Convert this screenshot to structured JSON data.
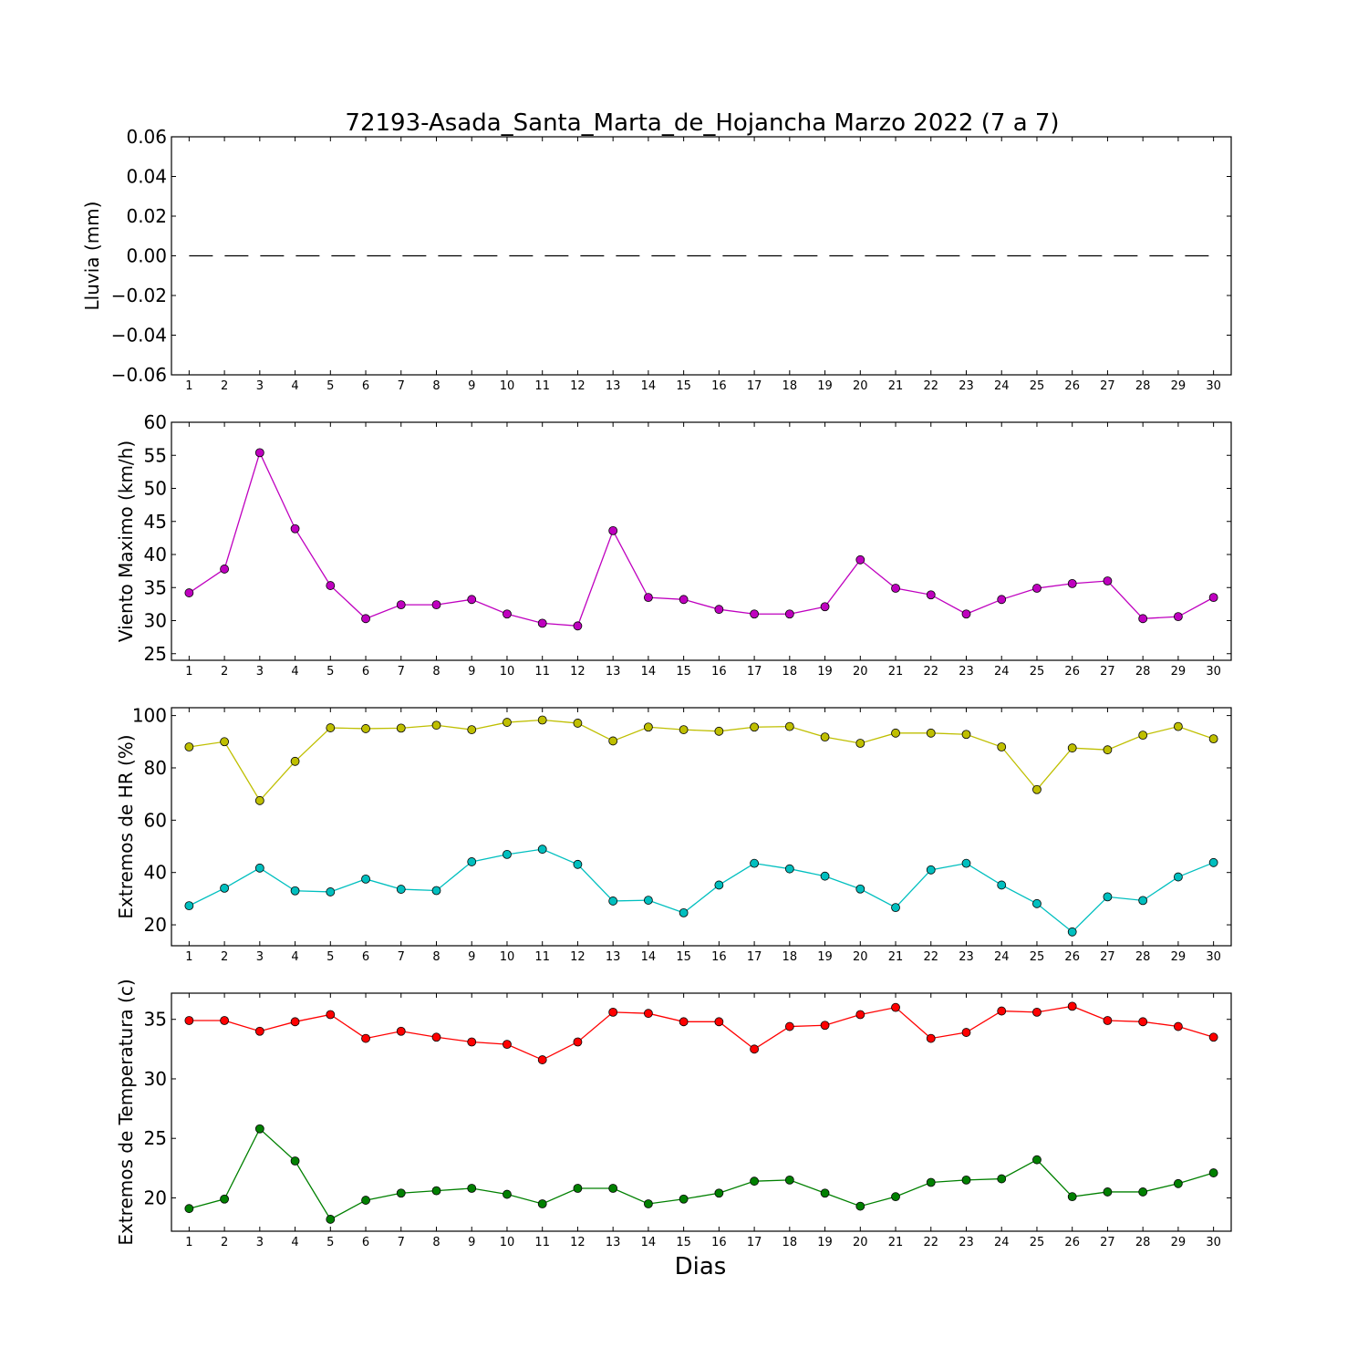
{
  "chart_data": [
    {
      "type": "line",
      "title": "72193-Asada_Santa_Marta_de_Hojancha Marzo 2022  (7 a 7)",
      "ylabel": "Lluvia (mm)",
      "xlabel": "",
      "x": [
        1,
        2,
        3,
        4,
        5,
        6,
        7,
        8,
        9,
        10,
        11,
        12,
        13,
        14,
        15,
        16,
        17,
        18,
        19,
        20,
        21,
        22,
        23,
        24,
        25,
        26,
        27,
        28,
        29,
        30
      ],
      "xlim": [
        0.5,
        30.5
      ],
      "ylim": [
        -0.06,
        0.06
      ],
      "yticks": [
        "0.06",
        "0.04",
        "0.02",
        "0.00",
        "−0.02",
        "−0.04",
        "−0.06"
      ],
      "ytick_values": [
        0.06,
        0.04,
        0.02,
        0.0,
        -0.02,
        -0.04,
        -0.06
      ],
      "series": [
        {
          "color": "#000000",
          "style": "dashed",
          "markers": false,
          "values": [
            0,
            0,
            0,
            0,
            0,
            0,
            0,
            0,
            0,
            0,
            0,
            0,
            0,
            0,
            0,
            0,
            0,
            0,
            0,
            0,
            0,
            0,
            0,
            0,
            0,
            0,
            0,
            0,
            0,
            0
          ]
        }
      ]
    },
    {
      "type": "line",
      "ylabel": "Viento Maximo (km/h)",
      "xlabel": "",
      "x": [
        1,
        2,
        3,
        4,
        5,
        6,
        7,
        8,
        9,
        10,
        11,
        12,
        13,
        14,
        15,
        16,
        17,
        18,
        19,
        20,
        21,
        22,
        23,
        24,
        25,
        26,
        27,
        28,
        29,
        30
      ],
      "xlim": [
        0.5,
        30.5
      ],
      "ylim": [
        24,
        60
      ],
      "yticks": [
        "60",
        "55",
        "50",
        "45",
        "40",
        "35",
        "30",
        "25"
      ],
      "ytick_values": [
        60,
        55,
        50,
        45,
        40,
        35,
        30,
        25
      ],
      "series": [
        {
          "color": "#bf00bf",
          "style": "solid",
          "markers": true,
          "values": [
            34.2,
            37.8,
            55.4,
            43.9,
            35.3,
            30.3,
            32.4,
            32.4,
            33.2,
            31.0,
            29.6,
            29.2,
            43.6,
            33.5,
            33.2,
            31.7,
            31.0,
            31.0,
            32.1,
            39.2,
            34.9,
            33.9,
            31.0,
            33.2,
            34.9,
            35.6,
            36.0,
            30.3,
            30.6,
            33.5
          ]
        }
      ]
    },
    {
      "type": "line",
      "ylabel": "Extremos de HR (%)",
      "xlabel": "",
      "x": [
        1,
        2,
        3,
        4,
        5,
        6,
        7,
        8,
        9,
        10,
        11,
        12,
        13,
        14,
        15,
        16,
        17,
        18,
        19,
        20,
        21,
        22,
        23,
        24,
        25,
        26,
        27,
        28,
        29,
        30
      ],
      "xlim": [
        0.5,
        30.5
      ],
      "ylim": [
        12,
        103
      ],
      "yticks": [
        "100",
        "80",
        "60",
        "40",
        "20"
      ],
      "ytick_values": [
        100,
        80,
        60,
        40,
        20
      ],
      "series": [
        {
          "color": "#bfbf00",
          "style": "solid",
          "markers": true,
          "values": [
            88,
            90,
            67.5,
            82.5,
            95.3,
            95,
            95.2,
            96.3,
            94.6,
            97.4,
            98.3,
            97.1,
            90.3,
            95.6,
            94.6,
            94,
            95.6,
            95.8,
            91.8,
            89.4,
            93.3,
            93.3,
            92.8,
            88,
            71.7,
            87.6,
            86.9,
            92.5,
            95.8,
            91.1
          ]
        },
        {
          "color": "#00bfbf",
          "style": "solid",
          "markers": true,
          "values": [
            27.3,
            34,
            41.7,
            33,
            32.6,
            37.5,
            33.6,
            33.1,
            44.1,
            46.9,
            48.9,
            43.1,
            29.1,
            29.4,
            24.6,
            35.2,
            43.5,
            41.4,
            38.6,
            33.7,
            26.6,
            41,
            43.5,
            35.2,
            28.1,
            17.3,
            30.7,
            29.3,
            38.3,
            43.8
          ]
        }
      ]
    },
    {
      "type": "line",
      "ylabel": "Extremos de Temperatura (c)",
      "xlabel": "Dias",
      "x": [
        1,
        2,
        3,
        4,
        5,
        6,
        7,
        8,
        9,
        10,
        11,
        12,
        13,
        14,
        15,
        16,
        17,
        18,
        19,
        20,
        21,
        22,
        23,
        24,
        25,
        26,
        27,
        28,
        29,
        30
      ],
      "xlim": [
        0.5,
        30.5
      ],
      "ylim": [
        17.2,
        37.2
      ],
      "yticks": [
        "35",
        "30",
        "25",
        "20"
      ],
      "ytick_values": [
        35,
        30,
        25,
        20
      ],
      "series": [
        {
          "color": "#ff0000",
          "style": "solid",
          "markers": true,
          "values": [
            34.9,
            34.9,
            34.0,
            34.8,
            35.4,
            33.4,
            34.0,
            33.5,
            33.1,
            32.9,
            31.6,
            33.1,
            35.6,
            35.5,
            34.8,
            34.8,
            32.5,
            34.4,
            34.5,
            35.4,
            36.0,
            33.4,
            33.9,
            35.7,
            35.6,
            36.1,
            34.9,
            34.8,
            34.4,
            33.5
          ]
        },
        {
          "color": "#008000",
          "style": "solid",
          "markers": true,
          "values": [
            19.1,
            19.9,
            25.8,
            23.1,
            18.2,
            19.8,
            20.4,
            20.6,
            20.8,
            20.3,
            19.5,
            20.8,
            20.8,
            19.5,
            19.9,
            20.4,
            21.4,
            21.5,
            20.4,
            19.3,
            20.1,
            21.3,
            21.5,
            21.6,
            23.2,
            20.1,
            20.5,
            20.5,
            21.2,
            22.1
          ]
        }
      ]
    }
  ]
}
